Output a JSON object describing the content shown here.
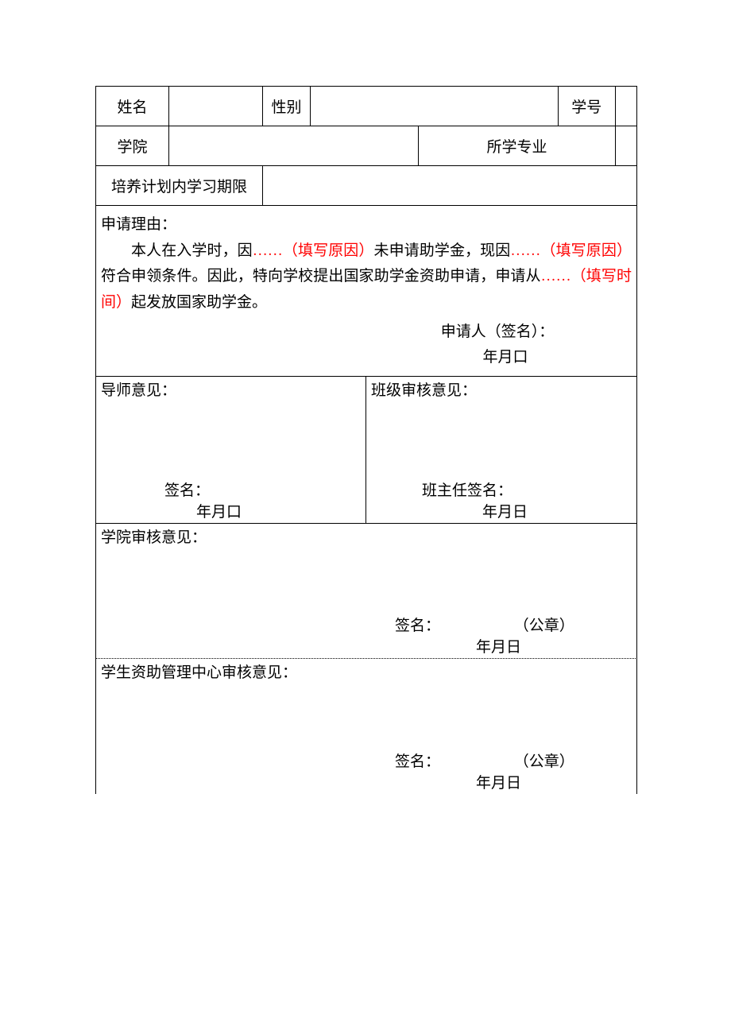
{
  "header": {
    "name_label": "姓名",
    "name_value": "",
    "gender_label": "性别",
    "gender_value": "",
    "id_label": "学号",
    "id_value": "",
    "college_label": "学院",
    "college_value": "",
    "major_label": "所学专业",
    "major_value": "",
    "period_label": "培养计划内学习期限",
    "period_value": ""
  },
  "reason": {
    "title": "申请理由：",
    "prefix": "本人在入学时，因",
    "hint1": "……（填写原因）",
    "mid1": "未申请助学金，现因",
    "hint2": "……（填写原因）",
    "mid2": "符合申领条件。因此，特向学校提出国家助学金资助申请，申请从",
    "hint3": "……（填写时间）",
    "suffix": "起发放国家助学金。",
    "applicant_sig_label": "申请人（签名）：",
    "date": "年月口"
  },
  "advisor_box": {
    "title": "导师意见：",
    "sig_label": "签名：",
    "date": "年月口"
  },
  "class_box": {
    "title": "班级审核意见：",
    "sig_label": "班主任签名：",
    "date": "年月日"
  },
  "college_box": {
    "title": "学院审核意见：",
    "sig_label": "签名：",
    "seal": "（公章）",
    "date": "年月日"
  },
  "center_box": {
    "title": "学生资助管理中心审核意见：",
    "sig_label": "签名：",
    "seal": "（公章）",
    "date": "年月日"
  },
  "style": {
    "text_color": "#000000",
    "hint_color": "#ff0000",
    "background": "#ffffff",
    "border_color": "#000000",
    "font_size": 19,
    "font_family": "SimSun"
  }
}
